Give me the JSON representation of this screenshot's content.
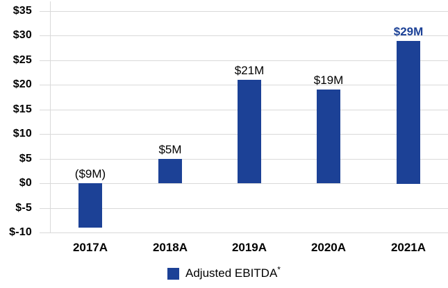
{
  "chart_data": {
    "type": "bar",
    "title": "",
    "xlabel": "",
    "ylabel": "",
    "categories": [
      "2017A",
      "2018A",
      "2019A",
      "2020A",
      "2021A"
    ],
    "values": [
      -9,
      5,
      21,
      19,
      29
    ],
    "value_labels": [
      "($9M)",
      "$5M",
      "$21M",
      "$19M",
      "$29M"
    ],
    "highlight_index": 4,
    "ylim": [
      -10,
      35
    ],
    "y_tick_step": 5,
    "y_ticks": [
      {
        "value": 35,
        "label": "$35"
      },
      {
        "value": 30,
        "label": "$30"
      },
      {
        "value": 25,
        "label": "$25"
      },
      {
        "value": 20,
        "label": "$20"
      },
      {
        "value": 15,
        "label": "$15"
      },
      {
        "value": 10,
        "label": "$10"
      },
      {
        "value": 5,
        "label": "$5"
      },
      {
        "value": 0,
        "label": "$0"
      },
      {
        "value": -5,
        "label": "$-5"
      },
      {
        "value": -10,
        "label": "$-10"
      }
    ],
    "grid": true,
    "legend_position": "bottom",
    "legend": {
      "label": "Adjusted EBITDA",
      "suffix": "*"
    },
    "colors": {
      "bar": "#1C4196",
      "highlight_label": "#1C4196",
      "value_label": "#000000",
      "axis_text": "#000000",
      "grid": "#D9D9D9",
      "background": "#FFFFFF"
    }
  }
}
